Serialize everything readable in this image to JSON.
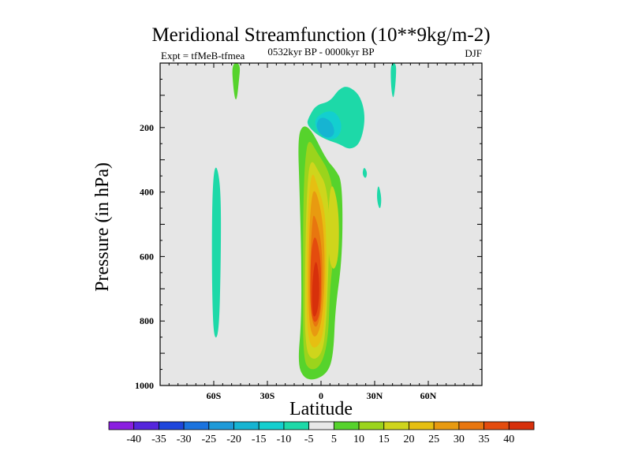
{
  "chart_data": {
    "type": "contour",
    "title": "Meridional Streamfunction (10**9kg/m-2)",
    "subtitle_left": "Expt = tfMeB-tfmea",
    "subtitle_center": "0532kyr BP - 0000kyr BP",
    "subtitle_right": "DJF",
    "xlabel": "Latitude",
    "ylabel": "Pressure (in hPa)",
    "xlim": [
      -90,
      90
    ],
    "ylim": [
      1000,
      0
    ],
    "x_ticks": [
      {
        "value": -60,
        "label": "60S"
      },
      {
        "value": -30,
        "label": "30S"
      },
      {
        "value": 0,
        "label": "0"
      },
      {
        "value": 30,
        "label": "30N"
      },
      {
        "value": 60,
        "label": "60N"
      }
    ],
    "y_ticks": [
      {
        "value": 200,
        "label": "200"
      },
      {
        "value": 400,
        "label": "400"
      },
      {
        "value": 600,
        "label": "600"
      },
      {
        "value": 800,
        "label": "800"
      },
      {
        "value": 1000,
        "label": "1000"
      }
    ],
    "background_color": "#e6e6e6",
    "colorbar": {
      "levels": [
        "-40",
        "-35",
        "-30",
        "-25",
        "-20",
        "-15",
        "-10",
        "-5",
        "5",
        "10",
        "15",
        "20",
        "25",
        "30",
        "35",
        "40"
      ],
      "colors": [
        "#8a1fe0",
        "#5526dc",
        "#1e46dc",
        "#1b73de",
        "#1e9ad8",
        "#16b4d2",
        "#13cfcf",
        "#1dd9a8",
        "#e8e8e8",
        "#56d32c",
        "#9bd41c",
        "#cfd51c",
        "#e6bf12",
        "#e89a10",
        "#e8760f",
        "#e44c0e",
        "#d7300b"
      ]
    },
    "regions": [
      {
        "name": "southern-positive-cell",
        "value": 5,
        "color": "#56d32c",
        "pts": [
          [
            -10,
            190
          ],
          [
            -5,
            210
          ],
          [
            3,
            300
          ],
          [
            8,
            330
          ],
          [
            12,
            370
          ],
          [
            12,
            600
          ],
          [
            8,
            760
          ],
          [
            7,
            900
          ],
          [
            4,
            960
          ],
          [
            -4,
            985
          ],
          [
            -10,
            975
          ],
          [
            -13,
            930
          ],
          [
            -11,
            800
          ],
          [
            -11,
            600
          ],
          [
            -12,
            400
          ],
          [
            -13,
            230
          ]
        ]
      },
      {
        "name": "positive-10",
        "value": 10,
        "color": "#9bd41c",
        "pts": [
          [
            -7,
            230
          ],
          [
            -2,
            280
          ],
          [
            4,
            330
          ],
          [
            7,
            400
          ],
          [
            7,
            600
          ],
          [
            5,
            700
          ],
          [
            4,
            860
          ],
          [
            0,
            940
          ],
          [
            -6,
            955
          ],
          [
            -10,
            920
          ],
          [
            -10,
            700
          ],
          [
            -10,
            450
          ],
          [
            -9,
            300
          ]
        ]
      },
      {
        "name": "positive-15-east",
        "value": 15,
        "color": "#cfd51c",
        "pts": [
          [
            6,
            360
          ],
          [
            10,
            450
          ],
          [
            10,
            600
          ],
          [
            7,
            650
          ],
          [
            4,
            600
          ],
          [
            4,
            450
          ]
        ]
      },
      {
        "name": "positive-15",
        "value": 15,
        "color": "#cfd51c",
        "pts": [
          [
            -6,
            290
          ],
          [
            -1,
            340
          ],
          [
            3,
            380
          ],
          [
            5,
            500
          ],
          [
            4,
            650
          ],
          [
            3,
            800
          ],
          [
            1,
            900
          ],
          [
            -5,
            925
          ],
          [
            -9,
            880
          ],
          [
            -9,
            650
          ],
          [
            -8,
            400
          ]
        ]
      },
      {
        "name": "positive-20",
        "value": 20,
        "color": "#e6bf12",
        "pts": [
          [
            -5,
            330
          ],
          [
            -2,
            380
          ],
          [
            2,
            450
          ],
          [
            3,
            550
          ],
          [
            3,
            700
          ],
          [
            2,
            800
          ],
          [
            0,
            870
          ],
          [
            -5,
            890
          ],
          [
            -8,
            830
          ],
          [
            -8,
            600
          ],
          [
            -7,
            420
          ]
        ]
      },
      {
        "name": "positive-25",
        "value": 25,
        "color": "#e89a10",
        "pts": [
          [
            -4,
            380
          ],
          [
            0,
            450
          ],
          [
            2,
            560
          ],
          [
            2,
            700
          ],
          [
            0,
            820
          ],
          [
            -4,
            860
          ],
          [
            -7,
            800
          ],
          [
            -7,
            600
          ],
          [
            -6,
            450
          ]
        ]
      },
      {
        "name": "positive-30",
        "value": 30,
        "color": "#e8760f",
        "pts": [
          [
            -4,
            460
          ],
          [
            0,
            540
          ],
          [
            1,
            650
          ],
          [
            0,
            780
          ],
          [
            -3,
            830
          ],
          [
            -6,
            780
          ],
          [
            -6,
            600
          ],
          [
            -5,
            500
          ]
        ]
      },
      {
        "name": "positive-35",
        "value": 35,
        "color": "#e44c0e",
        "pts": [
          [
            -3,
            530
          ],
          [
            0,
            610
          ],
          [
            0,
            720
          ],
          [
            -1,
            790
          ],
          [
            -4,
            810
          ],
          [
            -6,
            760
          ],
          [
            -6,
            640
          ],
          [
            -5,
            560
          ]
        ]
      },
      {
        "name": "positive-40",
        "value": 40,
        "color": "#d7300b",
        "pts": [
          [
            -3,
            600
          ],
          [
            -1,
            660
          ],
          [
            -1,
            740
          ],
          [
            -3,
            790
          ],
          [
            -5,
            780
          ],
          [
            -5,
            680
          ]
        ]
      },
      {
        "name": "tropical-negative-cell",
        "value": -5,
        "color": "#1dd9a8",
        "pts": [
          [
            -7,
            170
          ],
          [
            -3,
            130
          ],
          [
            5,
            120
          ],
          [
            10,
            80
          ],
          [
            15,
            70
          ],
          [
            22,
            100
          ],
          [
            25,
            170
          ],
          [
            22,
            250
          ],
          [
            16,
            270
          ],
          [
            10,
            250
          ],
          [
            4,
            240
          ],
          [
            -3,
            220
          ],
          [
            -8,
            190
          ]
        ]
      },
      {
        "name": "tropical-negative-10",
        "value": -10,
        "color": "#13cfcf",
        "pts": [
          [
            -4,
            175
          ],
          [
            2,
            150
          ],
          [
            8,
            150
          ],
          [
            12,
            190
          ],
          [
            10,
            230
          ],
          [
            4,
            240
          ],
          [
            -2,
            215
          ]
        ]
      },
      {
        "name": "tropical-negative-15",
        "value": -15,
        "color": "#16b4d2",
        "pts": [
          [
            -3,
            190
          ],
          [
            0,
            165
          ],
          [
            6,
            180
          ],
          [
            8,
            220
          ],
          [
            4,
            235
          ],
          [
            -1,
            220
          ]
        ]
      },
      {
        "name": "southern-midlat-negative",
        "value": -5,
        "color": "#1dd9a8",
        "pts": [
          [
            -58,
            320
          ],
          [
            -56,
            400
          ],
          [
            -56,
            600
          ],
          [
            -57,
            840
          ],
          [
            -60,
            860
          ],
          [
            -61,
            700
          ],
          [
            -61,
            450
          ],
          [
            -60,
            330
          ]
        ]
      },
      {
        "name": "south-top-positive",
        "value": 5,
        "color": "#56d32c",
        "pts": [
          [
            -50,
            0
          ],
          [
            -45,
            0
          ],
          [
            -46,
            60
          ],
          [
            -47,
            110
          ],
          [
            -48,
            115
          ],
          [
            -49,
            80
          ]
        ]
      },
      {
        "name": "north-top-negative",
        "value": -5,
        "color": "#1dd9a8",
        "pts": [
          [
            39,
            0
          ],
          [
            42,
            0
          ],
          [
            42,
            40
          ],
          [
            41,
            100
          ],
          [
            40,
            110
          ],
          [
            39,
            60
          ]
        ]
      },
      {
        "name": "northern-small-negative",
        "value": -5,
        "color": "#1dd9a8",
        "pts": [
          [
            32,
            370
          ],
          [
            34,
            420
          ],
          [
            33,
            460
          ],
          [
            31,
            420
          ]
        ]
      },
      {
        "name": "northern-tiny-negative",
        "value": -5,
        "color": "#1dd9a8",
        "pts": [
          [
            24,
            320
          ],
          [
            26,
            340
          ],
          [
            25,
            360
          ],
          [
            23,
            345
          ]
        ]
      }
    ]
  }
}
